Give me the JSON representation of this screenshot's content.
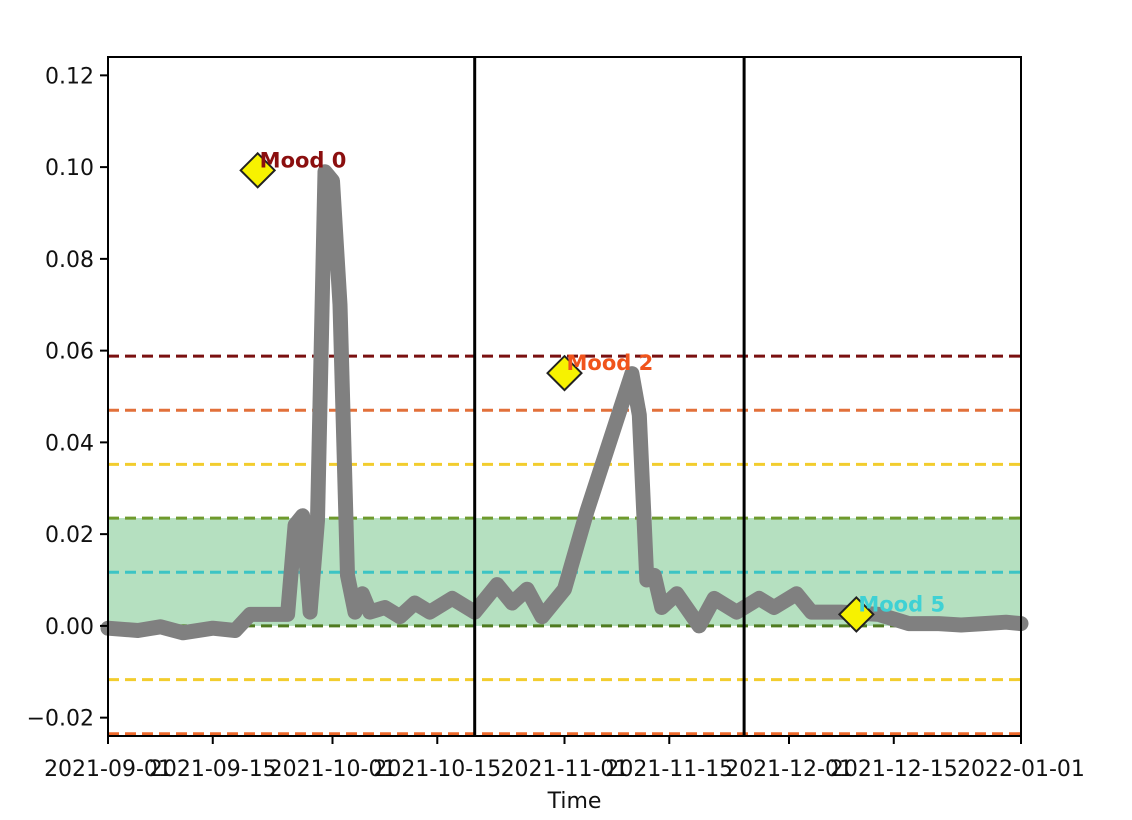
{
  "chart_data": {
    "type": "line",
    "title": "",
    "xlabel": "Time",
    "ylabel": "",
    "x_axis_type": "date",
    "xlim": [
      "2021-09-01",
      "2022-01-01"
    ],
    "ylim": [
      -0.024,
      0.124
    ],
    "x_ticks": [
      "2021-09-01",
      "2021-09-15",
      "2021-10-01",
      "2021-10-15",
      "2021-11-01",
      "2021-11-15",
      "2021-12-01",
      "2021-12-15",
      "2022-01-01"
    ],
    "y_ticks": [
      -0.02,
      0.0,
      0.02,
      0.04,
      0.06,
      0.08,
      0.1,
      0.12
    ],
    "y_tick_labels": [
      "−0.02",
      "0.00",
      "0.02",
      "0.04",
      "0.06",
      "0.08",
      "0.10",
      "0.12"
    ],
    "grid": false,
    "band": {
      "y0": 0.0,
      "y1": 0.0235,
      "color": "#b5e0c0"
    },
    "threshold_lines": [
      {
        "y": 0.0588,
        "color": "#7a1010"
      },
      {
        "y": 0.047,
        "color": "#e2703a"
      },
      {
        "y": 0.0352,
        "color": "#f2cd2e"
      },
      {
        "y": 0.0235,
        "color": "#6f9a2d"
      },
      {
        "y": 0.0117,
        "color": "#3cc4c4"
      },
      {
        "y": 0.0,
        "color": "#4f7a20"
      },
      {
        "y": -0.0117,
        "color": "#f2cd2e"
      },
      {
        "y": -0.0235,
        "color": "#ee6a2c"
      }
    ],
    "period_dividers": [
      "2021-10-20",
      "2021-11-25"
    ],
    "series": [
      {
        "color": "#808080",
        "points": [
          [
            "2021-09-01",
            -0.0005
          ],
          [
            "2021-09-05",
            -0.001
          ],
          [
            "2021-09-08",
            -0.0002
          ],
          [
            "2021-09-11",
            -0.0015
          ],
          [
            "2021-09-15",
            -0.0005
          ],
          [
            "2021-09-18",
            -0.001
          ],
          [
            "2021-09-20",
            0.0025
          ],
          [
            "2021-09-25",
            0.0025
          ],
          [
            "2021-09-26",
            0.022
          ],
          [
            "2021-09-27",
            0.024
          ],
          [
            "2021-09-28",
            0.003
          ],
          [
            "2021-09-29",
            0.023
          ],
          [
            "2021-09-30",
            0.099
          ],
          [
            "2021-10-01",
            0.097
          ],
          [
            "2021-10-02",
            0.07
          ],
          [
            "2021-10-03",
            0.011
          ],
          [
            "2021-10-04",
            0.003
          ],
          [
            "2021-10-05",
            0.007
          ],
          [
            "2021-10-06",
            0.003
          ],
          [
            "2021-10-08",
            0.004
          ],
          [
            "2021-10-10",
            0.002
          ],
          [
            "2021-10-12",
            0.005
          ],
          [
            "2021-10-14",
            0.003
          ],
          [
            "2021-10-17",
            0.006
          ],
          [
            "2021-10-20",
            0.003
          ],
          [
            "2021-10-23",
            0.009
          ],
          [
            "2021-10-25",
            0.005
          ],
          [
            "2021-10-27",
            0.008
          ],
          [
            "2021-10-29",
            0.002
          ],
          [
            "2021-11-01",
            0.008
          ],
          [
            "2021-11-04",
            0.025
          ],
          [
            "2021-11-08",
            0.045
          ],
          [
            "2021-11-10",
            0.055
          ],
          [
            "2021-11-11",
            0.046
          ],
          [
            "2021-11-12",
            0.01
          ],
          [
            "2021-11-13",
            0.011
          ],
          [
            "2021-11-14",
            0.004
          ],
          [
            "2021-11-16",
            0.007
          ],
          [
            "2021-11-19",
            0.0
          ],
          [
            "2021-11-21",
            0.006
          ],
          [
            "2021-11-24",
            0.003
          ],
          [
            "2021-11-27",
            0.006
          ],
          [
            "2021-11-29",
            0.004
          ],
          [
            "2021-12-02",
            0.007
          ],
          [
            "2021-12-04",
            0.003
          ],
          [
            "2021-12-08",
            0.003
          ],
          [
            "2021-12-13",
            0.0025
          ],
          [
            "2021-12-17",
            0.0005
          ],
          [
            "2021-12-21",
            0.0005
          ],
          [
            "2021-12-24",
            0.0002
          ],
          [
            "2021-12-27",
            0.0005
          ],
          [
            "2021-12-30",
            0.0008
          ],
          [
            "2022-01-01",
            0.0005
          ]
        ]
      }
    ],
    "annotations": [
      {
        "x": "2021-09-21",
        "y": 0.0993,
        "label": "Mood 0",
        "color": "#8b0f0f",
        "marker_color": "#f7f200"
      },
      {
        "x": "2021-11-01",
        "y": 0.0551,
        "label": "Mood 2",
        "color": "#f0541c",
        "marker_color": "#f7f200"
      },
      {
        "x": "2021-12-10",
        "y": 0.0025,
        "label": "Mood 5",
        "color": "#3fd1d4",
        "marker_color": "#f7f200"
      }
    ]
  }
}
